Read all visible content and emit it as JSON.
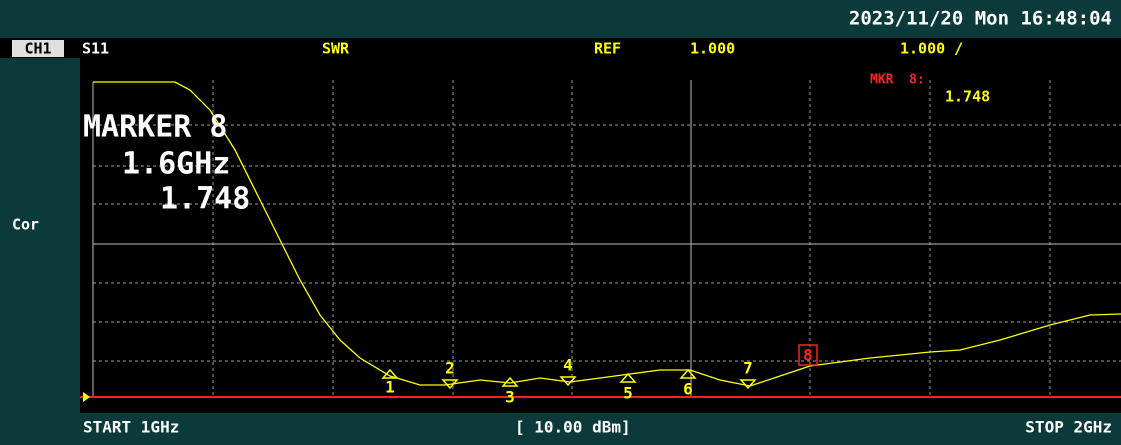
{
  "status_bar": {
    "datetime": "2023/11/20 Mon 16:48:04"
  },
  "header": {
    "channel": "CH1",
    "parameter": "S11",
    "format": "SWR",
    "ref_label": "REF",
    "ref_value": "1.000",
    "scale": "1.000 /"
  },
  "side": {
    "correction": "Cor"
  },
  "marker_readout": {
    "title": "MARKER 8",
    "frequency": "1.6GHz",
    "value": "1.748"
  },
  "marker_box": {
    "label": "MKR  8:",
    "value": "1.748"
  },
  "markers": [
    "1",
    "2",
    "3",
    "4",
    "5",
    "6",
    "7",
    "8"
  ],
  "footer": {
    "start": "START 1GHz",
    "power": "[ 10.00 dBm]",
    "stop": "STOP 2GHz"
  }
}
